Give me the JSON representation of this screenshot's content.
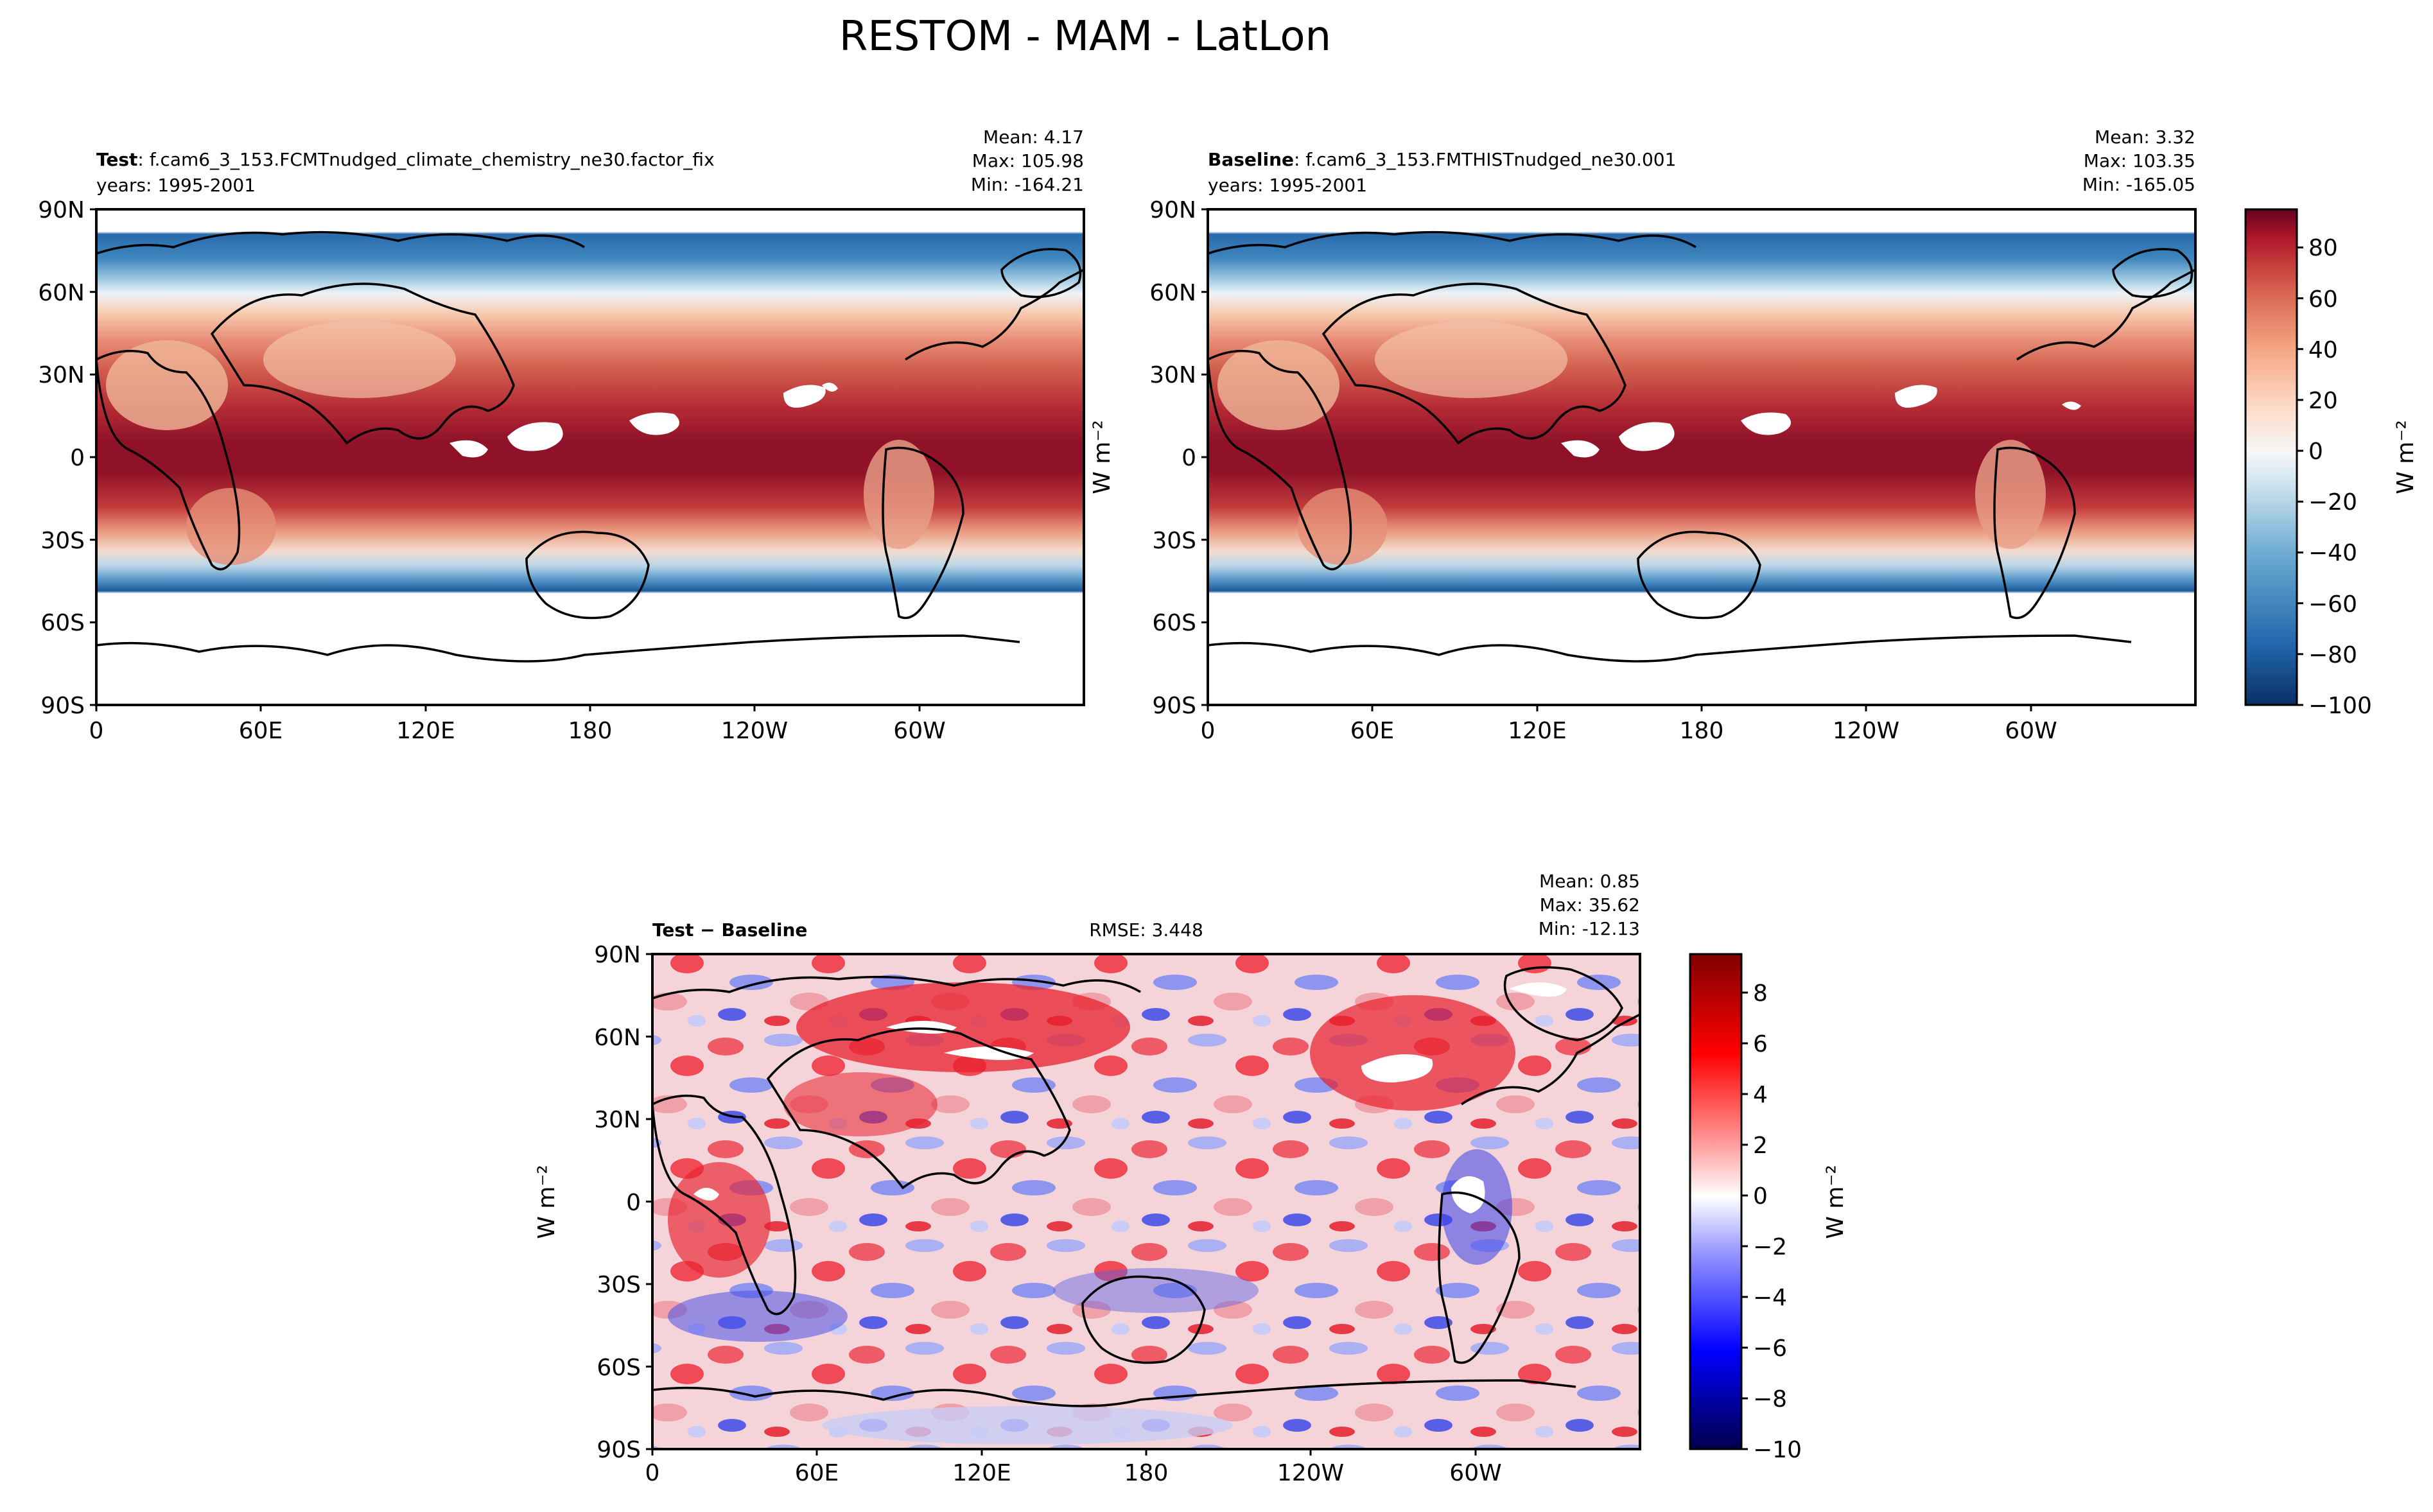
{
  "figure": {
    "title": "RESTOM - MAM - LatLon"
  },
  "test_panel": {
    "label_bold": "Test",
    "label_rest": ": f.cam6_3_153.FCMTnudged_climate_chemistry_ne30.factor_fix",
    "years": "years: 1995-2001",
    "mean": "Mean:  4.17",
    "max": "Max: 105.98",
    "min": "Min: -164.21"
  },
  "baseline_panel": {
    "label_bold": "Baseline",
    "label_rest": ": f.cam6_3_153.FMTHISTnudged_ne30.001",
    "years": "years: 1995-2001",
    "mean": "Mean:  3.32",
    "max": "Max: 103.35",
    "min": "Min: -165.05"
  },
  "diff_panel": {
    "label": "Test − Baseline",
    "rmse": "RMSE: 3.448",
    "mean": "Mean:  0.85",
    "max": "Max: 35.62",
    "min": "Min: -12.13"
  },
  "colors": {
    "land_outline": "#000000",
    "missing": "#ffffff"
  },
  "chart_data": [
    {
      "type": "heatmap",
      "name": "Test",
      "variable": "RESTOM",
      "season": "MAM",
      "xlabel": "",
      "ylabel": "",
      "xlim": [
        0,
        360
      ],
      "ylim": [
        -90,
        90
      ],
      "x_ticks": [
        "0",
        "60E",
        "120E",
        "180",
        "120W",
        "60W"
      ],
      "y_ticks": [
        "90S",
        "60S",
        "30S",
        "0",
        "30N",
        "60N",
        "90N"
      ],
      "colormap": "RdBu_r",
      "stats": {
        "mean": 4.17,
        "max": 105.98,
        "min": -164.21
      }
    },
    {
      "type": "heatmap",
      "name": "Baseline",
      "variable": "RESTOM",
      "season": "MAM",
      "xlabel": "",
      "ylabel": "W m⁻²",
      "xlim": [
        0,
        360
      ],
      "ylim": [
        -90,
        90
      ],
      "x_ticks": [
        "0",
        "60E",
        "120E",
        "180",
        "120W",
        "60W"
      ],
      "y_ticks": [
        "90S",
        "60S",
        "30S",
        "0",
        "30N",
        "60N",
        "90N"
      ],
      "colormap": "RdBu_r",
      "stats": {
        "mean": 3.32,
        "max": 103.35,
        "min": -165.05
      },
      "colorbar": {
        "label": "W m⁻²",
        "range": [
          -100,
          95
        ],
        "ticks": [
          "−100",
          "−80",
          "−60",
          "−40",
          "−20",
          "0",
          "20",
          "40",
          "60",
          "80"
        ]
      }
    },
    {
      "type": "heatmap",
      "name": "Test − Baseline",
      "variable": "RESTOM",
      "season": "MAM",
      "xlabel": "",
      "ylabel": "W m⁻²",
      "xlim": [
        0,
        360
      ],
      "ylim": [
        -90,
        90
      ],
      "x_ticks": [
        "0",
        "60E",
        "120E",
        "180",
        "120W",
        "60W"
      ],
      "y_ticks": [
        "90S",
        "60S",
        "30S",
        "0",
        "30N",
        "60N",
        "90N"
      ],
      "colormap": "seismic",
      "stats": {
        "mean": 0.85,
        "max": 35.62,
        "min": -12.13,
        "rmse": 3.448
      },
      "colorbar": {
        "label": "W m⁻²",
        "range": [
          -10,
          9.5
        ],
        "ticks": [
          "−10",
          "−8",
          "−6",
          "−4",
          "−2",
          "0",
          "2",
          "4",
          "6",
          "8"
        ]
      }
    }
  ]
}
